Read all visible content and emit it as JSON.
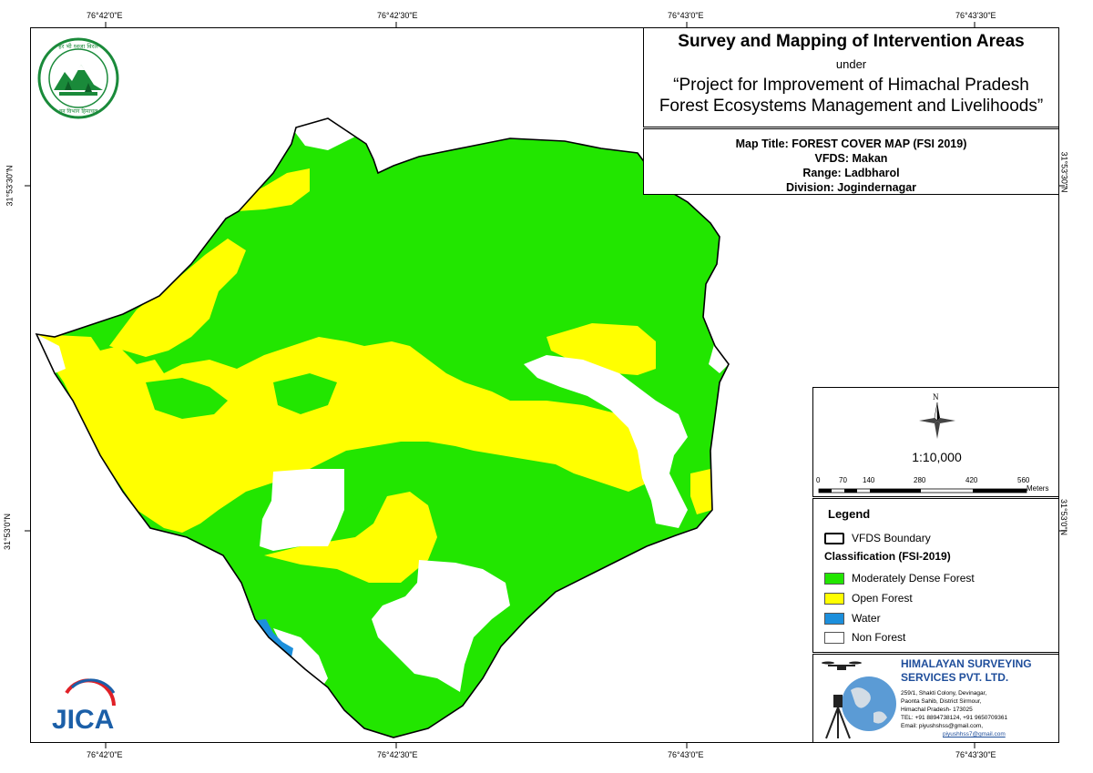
{
  "graticule": {
    "top": [
      "76°42'0\"E",
      "76°42'30\"E",
      "76°43'0\"E",
      "76°43'30\"E"
    ],
    "bottom": [
      "76°42'0\"E",
      "76°42'30\"E",
      "76°43'0\"E",
      "76°43'30\"E"
    ],
    "left": [
      "31°53'30\"N",
      "31°53'0\"N"
    ],
    "right": [
      "31°53'30\"N",
      "31°53'0\"N"
    ]
  },
  "title": {
    "main": "Survey and Mapping of Intervention Areas",
    "under": "under",
    "project_line1": "“Project for Improvement of Himachal Pradesh",
    "project_line2": "Forest Ecosystems Management and Livelihoods”"
  },
  "map_info": {
    "map_title": "Map Title: FOREST COVER MAP (FSI 2019)",
    "vfds": "VFDS: Makan",
    "range": "Range: Ladbharol",
    "division": "Division: Jogindernagar"
  },
  "scale": {
    "north_label": "N",
    "ratio": "1:10,000",
    "ticks": [
      "0",
      "70",
      "140",
      "280",
      "420",
      "560"
    ],
    "unit": "Meters"
  },
  "legend": {
    "heading": "Legend",
    "boundary_label": "VFDS Boundary",
    "classification_heading": "Classification (FSI-2019)",
    "classes": [
      {
        "label": "Moderately Dense Forest",
        "color": "#22e600"
      },
      {
        "label": "Open Forest",
        "color": "#ffff00"
      },
      {
        "label": "Water",
        "color": "#1c8fdc"
      },
      {
        "label": "Non Forest",
        "color": "#ffffff"
      }
    ]
  },
  "company": {
    "name_line1": "HIMALAYAN SURVEYING",
    "name_line2": "SERVICES PVT. LTD.",
    "address1": "259/1, Shakti Colony, Devinagar,",
    "address2": "Paonta Sahib, District Sirmour,",
    "address3": "Himachal Pradesh- 173025",
    "phone": "TEL: +91 8894738124, +91 9650709361",
    "email": "Email: piyushshss@gmail.com,",
    "email2": "piyushhss7@gmail.com"
  },
  "logos": {
    "hp_forest_text": "हर भी ध्वजा विरले बच्चावज",
    "jica": "JICA"
  },
  "colors": {
    "dense": "#22e600",
    "open": "#ffff00",
    "water": "#1c8fdc",
    "non_forest": "#ffffff",
    "company_blue": "#1f4e9b",
    "hp_green": "#1a8a3a"
  }
}
